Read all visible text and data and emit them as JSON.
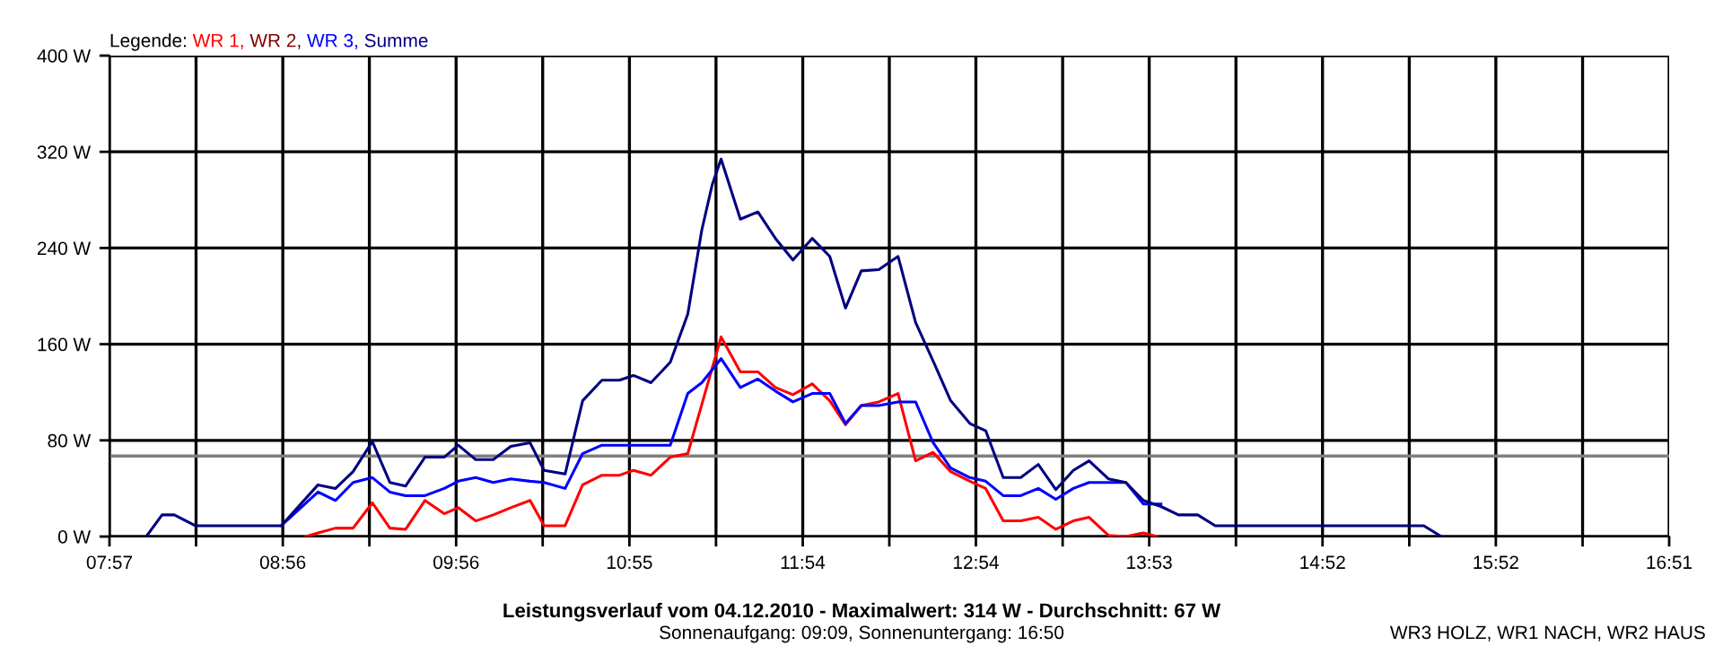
{
  "chart_data": {
    "type": "line",
    "title": "Leistungsverlauf vom 04.12.2010 - Maximalwert: 314 W - Durchschnitt: 67 W",
    "subtitle": "Sonnenaufgang: 09:09, Sonnenuntergang: 16:50",
    "annotations": [
      "WR3 HOLZ, WR1 NACH, WR2 HAUS"
    ],
    "legend_title": "Legende:",
    "legend": "top left",
    "grid": true,
    "xlim": [
      7.95,
      16.85
    ],
    "xticks": [
      {
        "value": 7.95,
        "label": "07:57"
      },
      {
        "value": 8.444,
        "label": null
      },
      {
        "value": 8.939,
        "label": "08:56"
      },
      {
        "value": 9.433,
        "label": null
      },
      {
        "value": 9.928,
        "label": "09:56"
      },
      {
        "value": 10.422,
        "label": null
      },
      {
        "value": 10.917,
        "label": "10:55"
      },
      {
        "value": 11.411,
        "label": null
      },
      {
        "value": 11.906,
        "label": "11:54"
      },
      {
        "value": 12.4,
        "label": null
      },
      {
        "value": 12.894,
        "label": "12:54"
      },
      {
        "value": 13.389,
        "label": null
      },
      {
        "value": 13.883,
        "label": "13:53"
      },
      {
        "value": 14.378,
        "label": null
      },
      {
        "value": 14.872,
        "label": "14:52"
      },
      {
        "value": 15.367,
        "label": null
      },
      {
        "value": 15.861,
        "label": "15:52"
      },
      {
        "value": 16.356,
        "label": null
      },
      {
        "value": 16.85,
        "label": "16:51"
      }
    ],
    "ylim": [
      0,
      400
    ],
    "yticks": [
      {
        "value": 0,
        "label": "0 W"
      },
      {
        "value": 80,
        "label": "80 W"
      },
      {
        "value": 160,
        "label": "160 W"
      },
      {
        "value": 240,
        "label": "240 W"
      },
      {
        "value": 320,
        "label": "320 W"
      },
      {
        "value": 400,
        "label": "400 W"
      }
    ],
    "ref_lines": [
      {
        "axis": "y",
        "value": 67,
        "color": "#808080"
      }
    ],
    "series": [
      {
        "name": "WR 1,",
        "color": "#ff0000",
        "x": [
          9.07,
          9.14,
          9.24,
          9.34,
          9.45,
          9.55,
          9.64,
          9.75,
          9.86,
          9.94,
          10.04,
          10.14,
          10.24,
          10.35,
          10.43,
          10.55,
          10.65,
          10.76,
          10.86,
          10.94,
          11.04,
          11.15,
          11.25,
          11.44,
          11.55,
          11.65,
          11.75,
          11.85,
          11.96,
          12.06,
          12.15,
          12.24,
          12.34,
          12.45,
          12.55,
          12.65,
          12.75,
          12.86,
          12.95,
          13.05,
          13.15,
          13.25,
          13.35,
          13.45,
          13.54,
          13.65,
          13.75,
          13.85,
          13.93
        ],
        "values": [
          0,
          3,
          7,
          7,
          28,
          7,
          6,
          30,
          19,
          24,
          13,
          18,
          24,
          30,
          9,
          9,
          43,
          51,
          51,
          55,
          51,
          66,
          69,
          166,
          137,
          137,
          124,
          118,
          127,
          113,
          93,
          109,
          112,
          119,
          63,
          70,
          54,
          46,
          40,
          13,
          13,
          16,
          6,
          13,
          16,
          1,
          0,
          3,
          0
        ]
      },
      {
        "name": "WR 2,",
        "color": "#800000"
      },
      {
        "name": "WR 3,",
        "color": "#0000ff",
        "x": [
          8.93,
          9.14,
          9.24,
          9.34,
          9.45,
          9.55,
          9.64,
          9.75,
          9.86,
          9.94,
          10.04,
          10.14,
          10.24,
          10.35,
          10.43,
          10.55,
          10.65,
          10.76,
          10.86,
          10.94,
          11.04,
          11.15,
          11.25,
          11.33,
          11.44,
          11.55,
          11.65,
          11.75,
          11.85,
          11.96,
          12.06,
          12.15,
          12.24,
          12.34,
          12.45,
          12.55,
          12.65,
          12.75,
          12.86,
          12.95,
          13.05,
          13.15,
          13.25,
          13.35,
          13.45,
          13.54,
          13.65,
          13.75,
          13.85,
          13.95
        ],
        "values": [
          9,
          37,
          30,
          45,
          49,
          37,
          34,
          34,
          40,
          46,
          49,
          45,
          48,
          46,
          45,
          40,
          69,
          76,
          76,
          76,
          76,
          76,
          119,
          128,
          148,
          124,
          131,
          121,
          112,
          119,
          119,
          94,
          109,
          109,
          112,
          112,
          78,
          57,
          49,
          46,
          34,
          34,
          40,
          31,
          40,
          45,
          45,
          45,
          27,
          27
        ]
      },
      {
        "name": "Summe",
        "color": "#000080",
        "x": [
          8.16,
          8.25,
          8.32,
          8.44,
          8.93,
          9.14,
          9.24,
          9.34,
          9.45,
          9.55,
          9.64,
          9.75,
          9.86,
          9.94,
          10.04,
          10.14,
          10.24,
          10.35,
          10.43,
          10.55,
          10.65,
          10.76,
          10.86,
          10.94,
          11.04,
          11.15,
          11.25,
          11.33,
          11.39,
          11.44,
          11.55,
          11.65,
          11.75,
          11.85,
          11.96,
          12.06,
          12.15,
          12.24,
          12.34,
          12.45,
          12.55,
          12.65,
          12.75,
          12.86,
          12.95,
          13.05,
          13.15,
          13.25,
          13.35,
          13.45,
          13.54,
          13.65,
          13.75,
          13.85,
          13.95,
          14.05,
          14.16,
          14.26,
          15.45,
          15.55
        ],
        "values": [
          0,
          18,
          18,
          9,
          9,
          43,
          40,
          54,
          79,
          45,
          42,
          66,
          66,
          76,
          64,
          64,
          75,
          78,
          55,
          52,
          113,
          130,
          130,
          134,
          128,
          145,
          185,
          255,
          293,
          314,
          264,
          270,
          248,
          230,
          248,
          233,
          190,
          221,
          222,
          233,
          178,
          146,
          113,
          94,
          88,
          49,
          49,
          60,
          39,
          55,
          63,
          48,
          45,
          30,
          25,
          18,
          18,
          9,
          9,
          0
        ]
      }
    ]
  }
}
